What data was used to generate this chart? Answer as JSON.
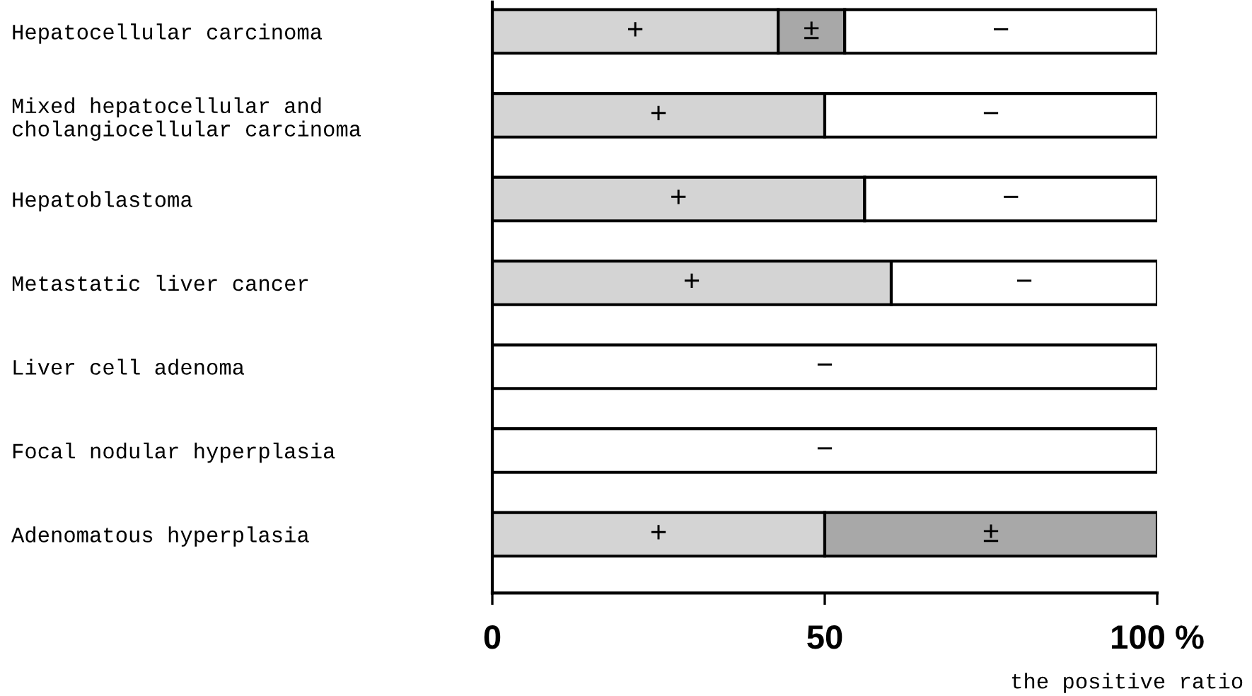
{
  "chart_data": {
    "type": "bar",
    "orientation": "horizontal",
    "stacked": true,
    "categories": [
      "Hepatocellular carcinoma",
      "Mixed hepatocellular and\ncholangiocellular carcinoma",
      "Hepatoblastoma",
      "Metastatic liver cancer",
      "Liver cell adenoma",
      "Focal nodular hyperplasia",
      "Adenomatous hyperplasia"
    ],
    "series": [
      {
        "name": "+",
        "color": "#d4d4d4",
        "values": [
          43,
          50,
          56,
          60,
          0,
          0,
          50
        ]
      },
      {
        "name": "±",
        "color": "#a8a8a8",
        "values": [
          10,
          0,
          0,
          0,
          0,
          0,
          50
        ]
      },
      {
        "name": "−",
        "color": "#ffffff",
        "values": [
          47,
          50,
          44,
          40,
          100,
          100,
          0
        ]
      }
    ],
    "xlim": [
      0,
      100
    ],
    "xticks": [
      0,
      50,
      {
        "value": 100,
        "label": "100 %"
      }
    ],
    "xlabel": "the positive ratio",
    "grid": false,
    "legend": false
  }
}
